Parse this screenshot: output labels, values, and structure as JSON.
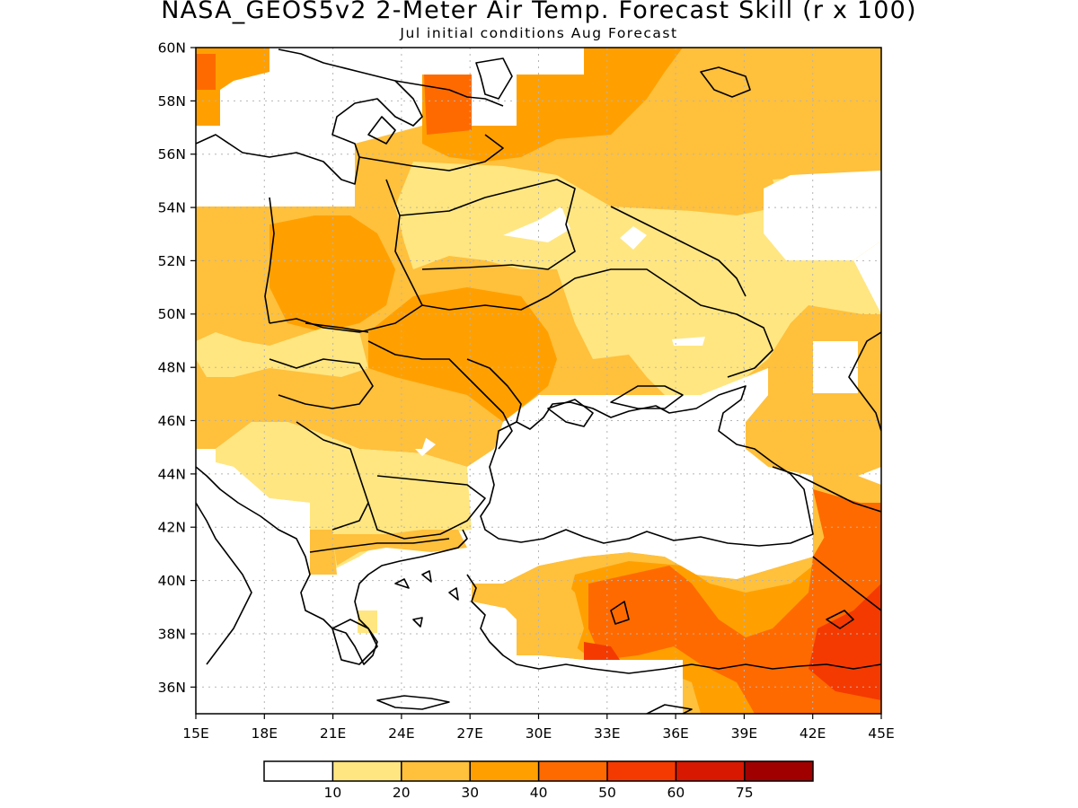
{
  "title": "NASA_GEOS5v2 2-Meter Air Temp. Forecast Skill (r x 100)",
  "subtitle": "Jul initial conditions  Aug Forecast",
  "map": {
    "region": "Eastern Europe / Black Sea",
    "lon_range": [
      15,
      45
    ],
    "lat_range": [
      35,
      60
    ],
    "x_tick_labels": [
      "15E",
      "18E",
      "21E",
      "24E",
      "27E",
      "30E",
      "33E",
      "36E",
      "39E",
      "42E",
      "45E"
    ],
    "y_tick_labels": [
      "36N",
      "38N",
      "40N",
      "42N",
      "44N",
      "46N",
      "48N",
      "50N",
      "52N",
      "54N",
      "56N",
      "58N",
      "60N"
    ],
    "gridlines": true
  },
  "legend": {
    "labels": [
      "10",
      "20",
      "30",
      "40",
      "50",
      "60",
      "75"
    ],
    "colors": [
      "#ffffff",
      "#ffe680",
      "#ffc03c",
      "#ffa000",
      "#ff6a00",
      "#f43a00",
      "#d81800",
      "#a00000"
    ]
  },
  "colors": {
    "level_10_20": "#ffe680",
    "level_20_30": "#ffc03c",
    "level_30_40": "#ffa000",
    "level_40_50": "#ff6a00",
    "level_50_60": "#f43a00",
    "coastline": "#000000"
  }
}
